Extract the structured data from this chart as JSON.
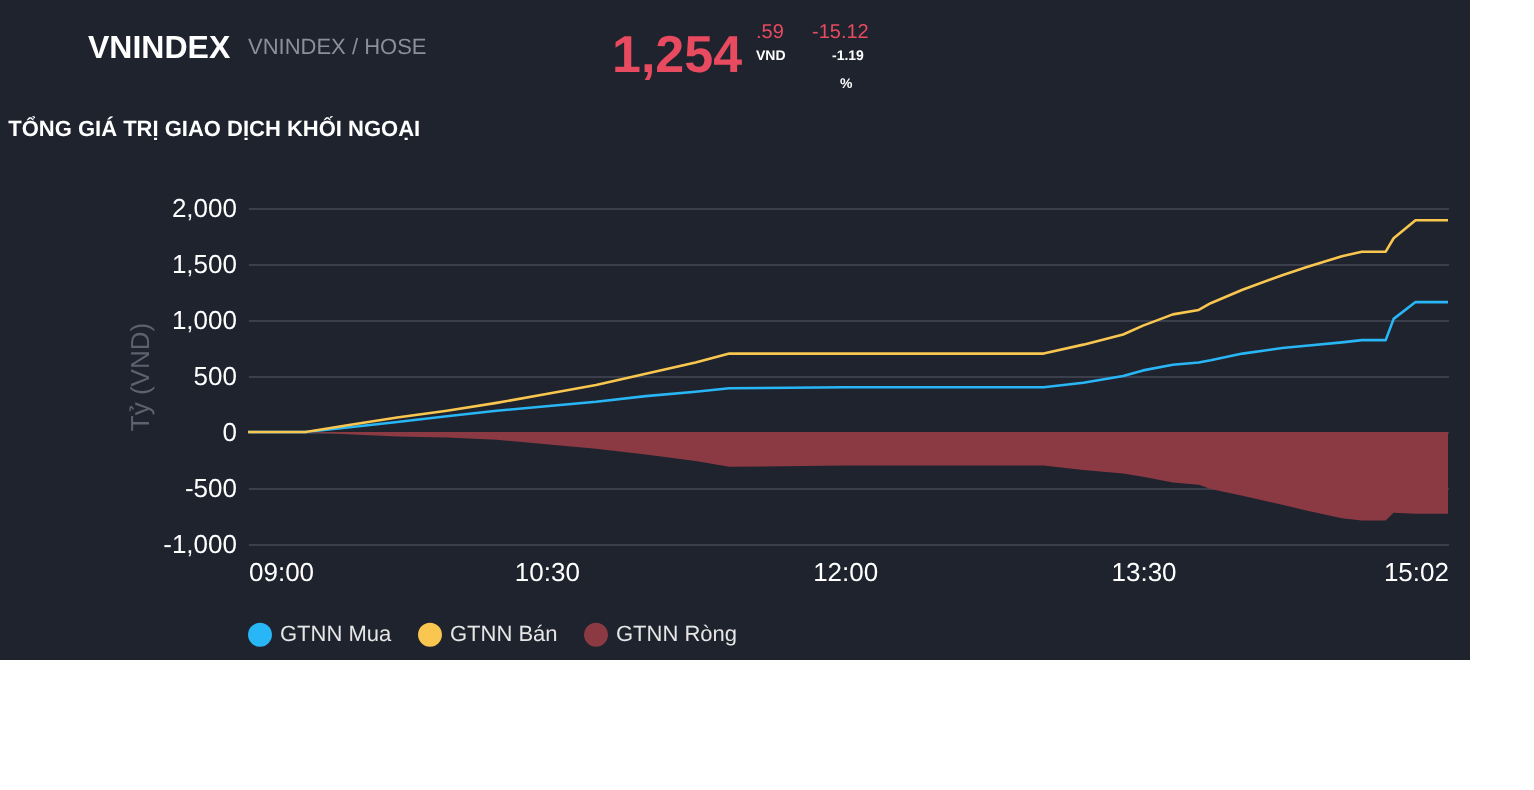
{
  "chart_data": {
    "type": "line",
    "title": "TỔNG GIÁ TRỊ GIAO DỊCH KHỐI NGOẠI",
    "ylabel": "Tỷ (VND)",
    "x": [
      9,
      9.29,
      9.5,
      9.75,
      10,
      10.25,
      10.5,
      10.75,
      11,
      11.25,
      11.42,
      12,
      12.5,
      13.0,
      13.2,
      13.4,
      13.5,
      13.65,
      13.78,
      13.84,
      14.0,
      14.2,
      14.32,
      14.5,
      14.6,
      14.72,
      14.76,
      14.87,
      15.0333
    ],
    "series": [
      {
        "name": "GTNN Mua",
        "color": "#29b6f6",
        "type": "line",
        "values": [
          0,
          0,
          40,
          90,
          140,
          190,
          230,
          270,
          320,
          360,
          390,
          400,
          400,
          400,
          440,
          500,
          550,
          600,
          620,
          640,
          700,
          750,
          770,
          800,
          820,
          820,
          1010,
          1160,
          1160
        ]
      },
      {
        "name": "GTNN Bán",
        "color": "#f9c74f",
        "type": "line",
        "values": [
          0,
          0,
          60,
          130,
          190,
          260,
          340,
          420,
          520,
          620,
          700,
          700,
          700,
          700,
          780,
          870,
          950,
          1050,
          1090,
          1150,
          1270,
          1400,
          1470,
          1570,
          1610,
          1610,
          1730,
          1890,
          1890
        ]
      },
      {
        "name": "GTNN Ròng",
        "color": "#8b3a44",
        "type": "area",
        "values": [
          0,
          0,
          -20,
          -40,
          -50,
          -70,
          -110,
          -150,
          -200,
          -260,
          -310,
          -300,
          -300,
          -300,
          -340,
          -370,
          -400,
          -450,
          -470,
          -510,
          -570,
          -650,
          -700,
          -770,
          -790,
          -790,
          -720,
          -730,
          -730
        ]
      }
    ],
    "xlim": [
      9,
      15.0333
    ],
    "xticks": [
      {
        "value": 9,
        "label": "09:00"
      },
      {
        "value": 10.5,
        "label": "10:30"
      },
      {
        "value": 12,
        "label": "12:00"
      },
      {
        "value": 13.5,
        "label": "13:30"
      },
      {
        "value": 15.0333,
        "label": "15:02"
      }
    ],
    "ylim": [
      -1000,
      2000
    ],
    "yticks": [
      {
        "value": -1000,
        "label": "-1,000"
      },
      -500,
      0,
      500,
      {
        "value": 1000,
        "label": "1,000"
      },
      {
        "value": 1500,
        "label": "1,500"
      },
      {
        "value": 2000,
        "label": "2,000"
      }
    ],
    "grid": "y",
    "legend": "bottom",
    "annotations": [
      "VNINDEX",
      "VNINDEX / HOSE",
      "1,254",
      ".59",
      "VND",
      "-15.12",
      "-1.19",
      "%"
    ]
  }
}
